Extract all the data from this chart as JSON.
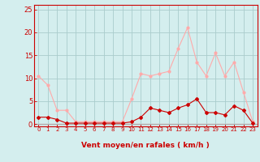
{
  "hours": [
    0,
    1,
    2,
    3,
    4,
    5,
    6,
    7,
    8,
    9,
    10,
    11,
    12,
    13,
    14,
    15,
    16,
    17,
    18,
    19,
    20,
    21,
    22,
    23
  ],
  "mean_wind": [
    1.5,
    1.5,
    1.0,
    0.2,
    0.2,
    0.2,
    0.2,
    0.2,
    0.2,
    0.2,
    0.5,
    1.5,
    3.5,
    3.0,
    2.5,
    3.5,
    4.2,
    5.5,
    2.5,
    2.5,
    2.0,
    4.0,
    3.0,
    0.2
  ],
  "gust_wind": [
    10.5,
    8.5,
    3.0,
    3.0,
    0.5,
    0.5,
    0.5,
    0.5,
    0.5,
    0.5,
    5.5,
    11.0,
    10.5,
    11.0,
    11.5,
    16.5,
    21.0,
    13.5,
    10.5,
    15.5,
    10.5,
    13.5,
    7.0,
    0.5
  ],
  "mean_color": "#cc0000",
  "gust_color": "#ffaaaa",
  "bg_color": "#d4eeee",
  "grid_color": "#aacccc",
  "xlabel": "Vent moyen/en rafales ( km/h )",
  "yticks": [
    0,
    5,
    10,
    15,
    20,
    25
  ],
  "ylim": [
    -0.5,
    26
  ],
  "xlim": [
    -0.5,
    23.5
  ],
  "tick_color": "#cc0000"
}
